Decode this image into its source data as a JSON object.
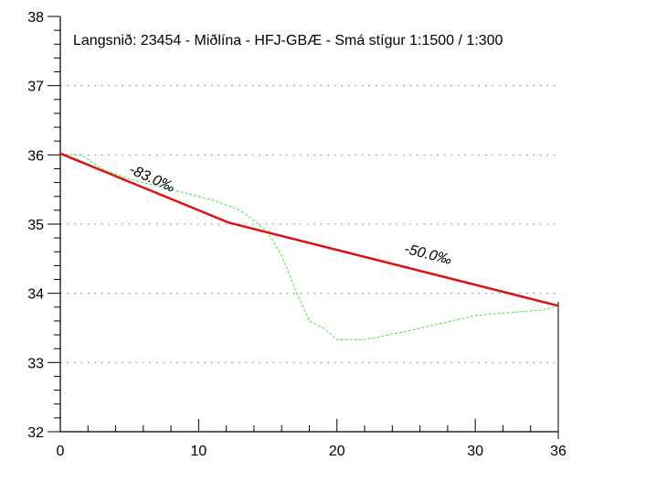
{
  "chart_data": {
    "type": "line",
    "title": "Langsnið: 23454 - Miðlína - HFJ-GBÆ - Smá stígur 1:1500 / 1:300",
    "xlabel": "",
    "ylabel": "",
    "xlim": [
      0,
      36
    ],
    "ylim": [
      32,
      38
    ],
    "x_ticks": [
      0,
      10,
      20,
      30,
      36
    ],
    "y_ticks": [
      32,
      33,
      34,
      35,
      36,
      37,
      38
    ],
    "grid": "dotted horizontal",
    "series": [
      {
        "color": "#33ee33",
        "style": "dashed",
        "points": [
          [
            0,
            36.0
          ],
          [
            1.5,
            36.0
          ],
          [
            3,
            35.8
          ],
          [
            5,
            35.65
          ],
          [
            7,
            35.55
          ],
          [
            9,
            35.45
          ],
          [
            11,
            35.35
          ],
          [
            13,
            35.2
          ],
          [
            14,
            35.05
          ],
          [
            15,
            34.88
          ],
          [
            16,
            34.55
          ],
          [
            17,
            34.05
          ],
          [
            18,
            33.6
          ],
          [
            19,
            33.5
          ],
          [
            20,
            33.33
          ],
          [
            22,
            33.33
          ],
          [
            25,
            33.45
          ],
          [
            30,
            33.68
          ],
          [
            33,
            33.73
          ],
          [
            35,
            33.76
          ],
          [
            36,
            33.82
          ]
        ]
      },
      {
        "color": "#dd1111",
        "style": "solid",
        "points": [
          [
            0,
            36.02
          ],
          [
            12.2,
            35.02
          ],
          [
            36,
            33.82
          ]
        ]
      }
    ],
    "annotations": [
      {
        "text": "-83.0‰",
        "x": 6.5,
        "y": 35.6,
        "angle": 24
      },
      {
        "text": "-50.0‰",
        "x": 26.5,
        "y": 34.5,
        "angle": 14
      }
    ]
  }
}
